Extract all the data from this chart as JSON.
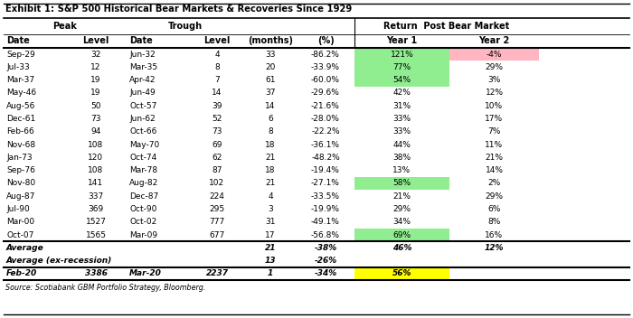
{
  "title": "Exhibit 1: S&P 500 Historical Bear Markets & Recoveries Since 1929",
  "source": "Source: Scotiabank GBM Portfolio Strategy, Bloomberg.",
  "col_headers_row2": [
    "Date",
    "Level",
    "Date",
    "Level",
    "(months)",
    "(%)",
    "Year 1",
    "Year 2"
  ],
  "rows": [
    [
      "Sep-29",
      "32",
      "Jun-32",
      "4",
      "33",
      "-86.2%",
      "121%",
      "-4%"
    ],
    [
      "Jul-33",
      "12",
      "Mar-35",
      "8",
      "20",
      "-33.9%",
      "77%",
      "29%"
    ],
    [
      "Mar-37",
      "19",
      "Apr-42",
      "7",
      "61",
      "-60.0%",
      "54%",
      "3%"
    ],
    [
      "May-46",
      "19",
      "Jun-49",
      "14",
      "37",
      "-29.6%",
      "42%",
      "12%"
    ],
    [
      "Aug-56",
      "50",
      "Oct-57",
      "39",
      "14",
      "-21.6%",
      "31%",
      "10%"
    ],
    [
      "Dec-61",
      "73",
      "Jun-62",
      "52",
      "6",
      "-28.0%",
      "33%",
      "17%"
    ],
    [
      "Feb-66",
      "94",
      "Oct-66",
      "73",
      "8",
      "-22.2%",
      "33%",
      "7%"
    ],
    [
      "Nov-68",
      "108",
      "May-70",
      "69",
      "18",
      "-36.1%",
      "44%",
      "11%"
    ],
    [
      "Jan-73",
      "120",
      "Oct-74",
      "62",
      "21",
      "-48.2%",
      "38%",
      "21%"
    ],
    [
      "Sep-76",
      "108",
      "Mar-78",
      "87",
      "18",
      "-19.4%",
      "13%",
      "14%"
    ],
    [
      "Nov-80",
      "141",
      "Aug-82",
      "102",
      "21",
      "-27.1%",
      "58%",
      "2%"
    ],
    [
      "Aug-87",
      "337",
      "Dec-87",
      "224",
      "4",
      "-33.5%",
      "21%",
      "29%"
    ],
    [
      "Jul-90",
      "369",
      "Oct-90",
      "295",
      "3",
      "-19.9%",
      "29%",
      "6%"
    ],
    [
      "Mar-00",
      "1527",
      "Oct-02",
      "777",
      "31",
      "-49.1%",
      "34%",
      "8%"
    ],
    [
      "Oct-07",
      "1565",
      "Mar-09",
      "677",
      "17",
      "-56.8%",
      "69%",
      "16%"
    ]
  ],
  "avg_row": [
    "Average",
    "",
    "",
    "",
    "21",
    "-38%",
    "46%",
    "12%"
  ],
  "avg_ex_row": [
    "Average (ex-recession)",
    "",
    "",
    "",
    "13",
    "-26%",
    "",
    ""
  ],
  "feb20_row": [
    "Feb-20",
    "3386",
    "Mar-20",
    "2237",
    "1",
    "-34%",
    "56%",
    ""
  ],
  "highlight_green_y1": [
    0,
    1,
    2,
    10,
    14
  ],
  "highlight_green_y2": [],
  "highlight_pink_y2": [
    0
  ],
  "color_green": "#90EE90",
  "color_pink": "#FFB6C1",
  "color_yellow": "#FFFF00",
  "figsize": [
    7.0,
    3.52
  ],
  "dpi": 100
}
